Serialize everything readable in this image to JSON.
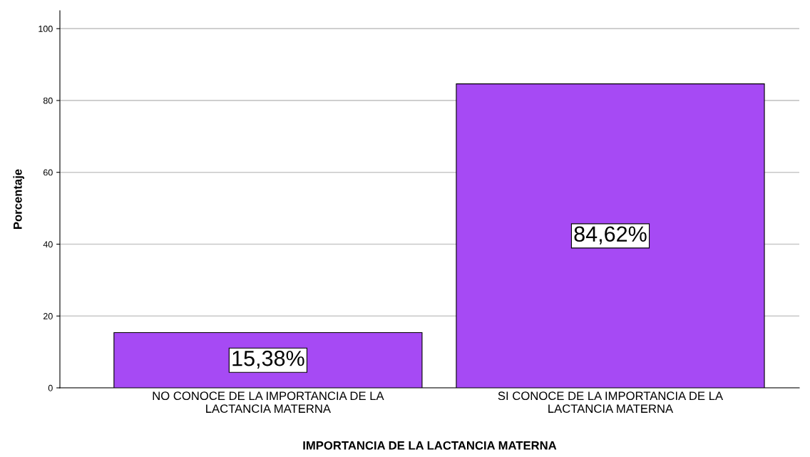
{
  "chart_data": {
    "type": "bar",
    "xlabel": "IMPORTANCIA DE LA LACTANCIA MATERNA",
    "ylabel": "Porcentaje",
    "categories": [
      "NO CONOCE DE LA IMPORTANCIA DE LA\nLACTANCIA MATERNA",
      "SI CONOCE DE LA IMPORTANCIA DE LA\nLACTANCIA MATERNA"
    ],
    "values": [
      15.38,
      84.62
    ],
    "value_labels": [
      "15,38%",
      "84,62%"
    ],
    "color": "#a64af4",
    "ylim": [
      0,
      105
    ],
    "yticks": [
      0,
      20,
      40,
      60,
      80,
      100
    ],
    "grid": "y",
    "legend": false
  }
}
